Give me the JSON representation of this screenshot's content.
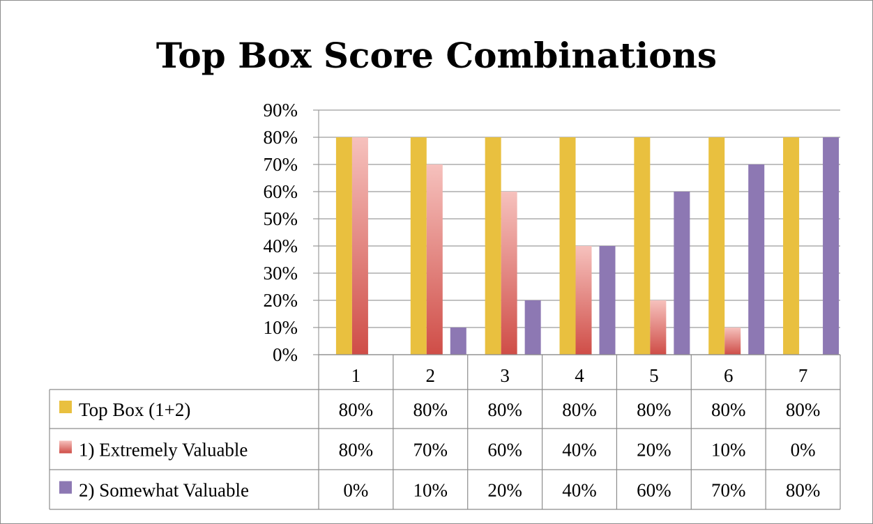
{
  "chart_data": {
    "type": "bar",
    "title": "Top Box Score Combinations",
    "categories": [
      "1",
      "2",
      "3",
      "4",
      "5",
      "6",
      "7"
    ],
    "ylim": [
      0,
      90
    ],
    "yticks": [
      0,
      10,
      20,
      30,
      40,
      50,
      60,
      70,
      80,
      90
    ],
    "ytick_format": "percent",
    "grid": true,
    "legend": "data-table-below",
    "series": [
      {
        "name": "Top Box (1+2)",
        "values": [
          80,
          80,
          80,
          80,
          80,
          80,
          80
        ],
        "color": "#e8c23f",
        "labels": [
          "80%",
          "80%",
          "80%",
          "80%",
          "80%",
          "80%",
          "80%"
        ]
      },
      {
        "name": "1) Extremely Valuable",
        "values": [
          80,
          70,
          60,
          40,
          20,
          10,
          0
        ],
        "color": "#d9605c",
        "color_light": "#f4b8b4",
        "labels": [
          "80%",
          "70%",
          "60%",
          "40%",
          "20%",
          "10%",
          "0%"
        ]
      },
      {
        "name": "2) Somewhat Valuable",
        "values": [
          0,
          10,
          20,
          40,
          60,
          70,
          80
        ],
        "color": "#8e7ab5",
        "labels": [
          "0%",
          "10%",
          "20%",
          "40%",
          "60%",
          "70%",
          "80%"
        ]
      }
    ]
  }
}
